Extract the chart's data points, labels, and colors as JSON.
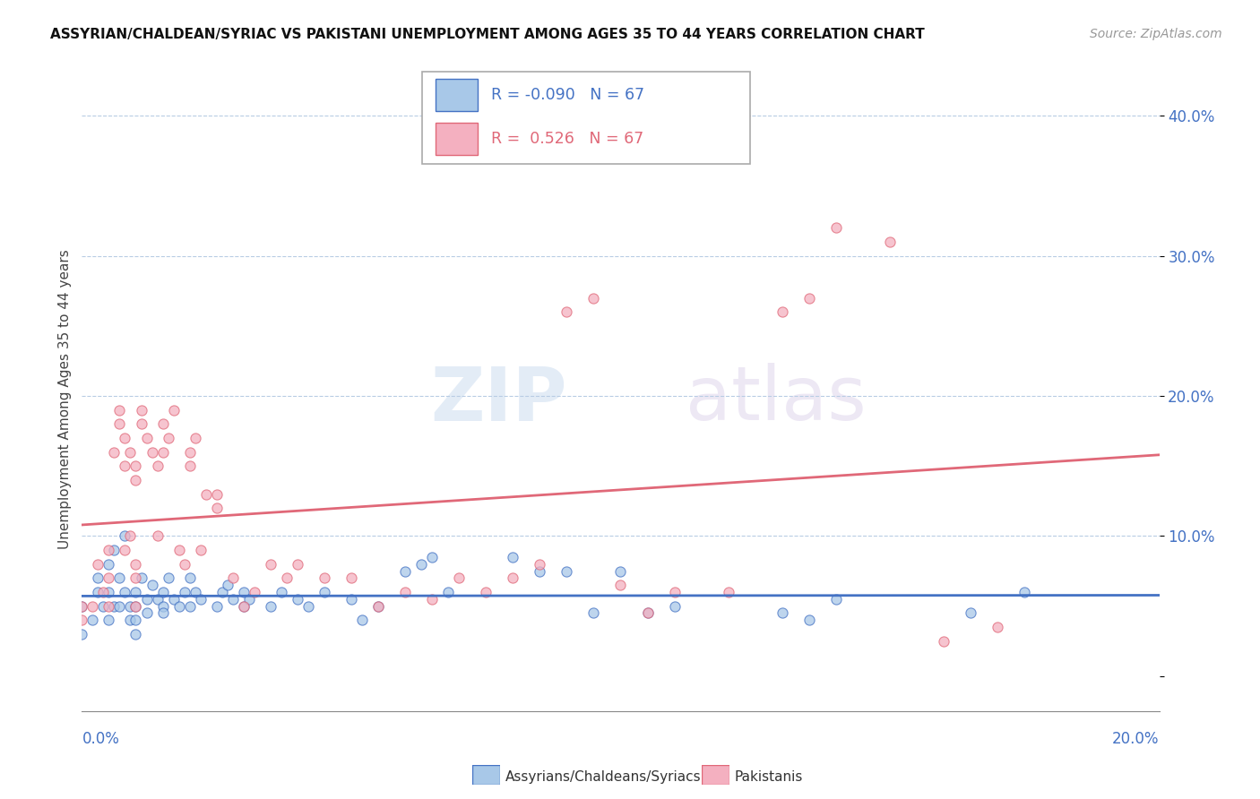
{
  "title": "ASSYRIAN/CHALDEAN/SYRIAC VS PAKISTANI UNEMPLOYMENT AMONG AGES 35 TO 44 YEARS CORRELATION CHART",
  "source": "Source: ZipAtlas.com",
  "ylabel": "Unemployment Among Ages 35 to 44 years",
  "xlim": [
    0.0,
    0.2
  ],
  "ylim": [
    -0.025,
    0.42
  ],
  "legend_r_blue": "-0.090",
  "legend_r_pink": " 0.526",
  "legend_n": "67",
  "blue_color": "#a8c8e8",
  "pink_color": "#f4b0c0",
  "blue_line_color": "#4472c4",
  "pink_line_color": "#e06878",
  "yticks": [
    0.0,
    0.1,
    0.2,
    0.3,
    0.4
  ],
  "ytick_labels": [
    "",
    "10.0%",
    "20.0%",
    "30.0%",
    "40.0%"
  ],
  "blue_scatter_x": [
    0.0,
    0.0,
    0.002,
    0.003,
    0.003,
    0.004,
    0.005,
    0.005,
    0.005,
    0.006,
    0.006,
    0.007,
    0.007,
    0.008,
    0.008,
    0.009,
    0.009,
    0.01,
    0.01,
    0.01,
    0.01,
    0.011,
    0.012,
    0.012,
    0.013,
    0.014,
    0.015,
    0.015,
    0.015,
    0.016,
    0.017,
    0.018,
    0.019,
    0.02,
    0.02,
    0.021,
    0.022,
    0.025,
    0.026,
    0.027,
    0.028,
    0.03,
    0.03,
    0.031,
    0.035,
    0.037,
    0.04,
    0.042,
    0.045,
    0.05,
    0.052,
    0.055,
    0.06,
    0.063,
    0.065,
    0.068,
    0.08,
    0.085,
    0.09,
    0.095,
    0.1,
    0.105,
    0.11,
    0.13,
    0.135,
    0.14,
    0.165,
    0.175
  ],
  "blue_scatter_y": [
    0.05,
    0.03,
    0.04,
    0.06,
    0.07,
    0.05,
    0.04,
    0.06,
    0.08,
    0.05,
    0.09,
    0.07,
    0.05,
    0.1,
    0.06,
    0.05,
    0.04,
    0.06,
    0.05,
    0.04,
    0.03,
    0.07,
    0.055,
    0.045,
    0.065,
    0.055,
    0.06,
    0.05,
    0.045,
    0.07,
    0.055,
    0.05,
    0.06,
    0.05,
    0.07,
    0.06,
    0.055,
    0.05,
    0.06,
    0.065,
    0.055,
    0.05,
    0.06,
    0.055,
    0.05,
    0.06,
    0.055,
    0.05,
    0.06,
    0.055,
    0.04,
    0.05,
    0.075,
    0.08,
    0.085,
    0.06,
    0.085,
    0.075,
    0.075,
    0.045,
    0.075,
    0.045,
    0.05,
    0.045,
    0.04,
    0.055,
    0.045,
    0.06
  ],
  "pink_scatter_x": [
    0.0,
    0.0,
    0.002,
    0.003,
    0.004,
    0.005,
    0.005,
    0.005,
    0.006,
    0.007,
    0.007,
    0.008,
    0.008,
    0.008,
    0.009,
    0.009,
    0.01,
    0.01,
    0.01,
    0.01,
    0.01,
    0.011,
    0.011,
    0.012,
    0.013,
    0.014,
    0.014,
    0.015,
    0.015,
    0.016,
    0.017,
    0.018,
    0.019,
    0.02,
    0.02,
    0.021,
    0.022,
    0.023,
    0.025,
    0.025,
    0.028,
    0.03,
    0.032,
    0.035,
    0.038,
    0.04,
    0.045,
    0.05,
    0.055,
    0.06,
    0.065,
    0.07,
    0.075,
    0.08,
    0.085,
    0.09,
    0.095,
    0.1,
    0.105,
    0.11,
    0.12,
    0.13,
    0.135,
    0.14,
    0.15,
    0.16,
    0.17
  ],
  "pink_scatter_y": [
    0.05,
    0.04,
    0.05,
    0.08,
    0.06,
    0.09,
    0.07,
    0.05,
    0.16,
    0.18,
    0.19,
    0.17,
    0.15,
    0.09,
    0.16,
    0.1,
    0.15,
    0.14,
    0.08,
    0.07,
    0.05,
    0.18,
    0.19,
    0.17,
    0.16,
    0.15,
    0.1,
    0.18,
    0.16,
    0.17,
    0.19,
    0.09,
    0.08,
    0.15,
    0.16,
    0.17,
    0.09,
    0.13,
    0.12,
    0.13,
    0.07,
    0.05,
    0.06,
    0.08,
    0.07,
    0.08,
    0.07,
    0.07,
    0.05,
    0.06,
    0.055,
    0.07,
    0.06,
    0.07,
    0.08,
    0.26,
    0.27,
    0.065,
    0.045,
    0.06,
    0.06,
    0.26,
    0.27,
    0.32,
    0.31,
    0.025,
    0.035
  ]
}
